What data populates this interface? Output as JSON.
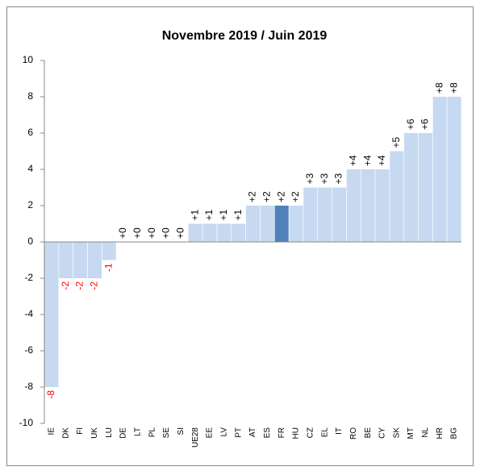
{
  "chart_data": {
    "type": "bar",
    "title": "Novembre 2019 / Juin 2019",
    "categories": [
      "IE",
      "DK",
      "FI",
      "UK",
      "LU",
      "DE",
      "LT",
      "PL",
      "SE",
      "SI",
      "UE28",
      "EE",
      "LV",
      "PT",
      "AT",
      "ES",
      "FR",
      "HU",
      "CZ",
      "EL",
      "IT",
      "RO",
      "BE",
      "CY",
      "SK",
      "MT",
      "NL",
      "HR",
      "BG"
    ],
    "values": [
      -8,
      -2,
      -2,
      -2,
      -1,
      0,
      0,
      0,
      0,
      0,
      1,
      1,
      1,
      1,
      2,
      2,
      2,
      2,
      3,
      3,
      3,
      4,
      4,
      4,
      5,
      6,
      6,
      8,
      8
    ],
    "value_labels": [
      "-8",
      "-2",
      "-2",
      "-2",
      "-1",
      "+0",
      "+0",
      "+0",
      "+0",
      "+0",
      "+1",
      "+1",
      "+1",
      "+1",
      "+2",
      "+2",
      "+2",
      "+2",
      "+3",
      "+3",
      "+3",
      "+4",
      "+4",
      "+4",
      "+5",
      "+6",
      "+6",
      "+8",
      "+8"
    ],
    "colors": [
      "#c6d9f1",
      "#c6d9f1",
      "#c6d9f1",
      "#c6d9f1",
      "#c6d9f1",
      "#c6d9f1",
      "#c6d9f1",
      "#c6d9f1",
      "#c6d9f1",
      "#c6d9f1",
      "#c6d9f1",
      "#c6d9f1",
      "#c6d9f1",
      "#c6d9f1",
      "#c6d9f1",
      "#c6d9f1",
      "#4f81bd",
      "#c6d9f1",
      "#c6d9f1",
      "#c6d9f1",
      "#c6d9f1",
      "#c6d9f1",
      "#c6d9f1",
      "#c6d9f1",
      "#c6d9f1",
      "#c6d9f1",
      "#c6d9f1",
      "#c6d9f1",
      "#c6d9f1"
    ],
    "negative_label_color": "#ff0000",
    "ylim": [
      -10,
      10
    ],
    "yticks": [
      -10,
      -8,
      -6,
      -4,
      -2,
      0,
      2,
      4,
      6,
      8,
      10
    ],
    "grid": false
  }
}
